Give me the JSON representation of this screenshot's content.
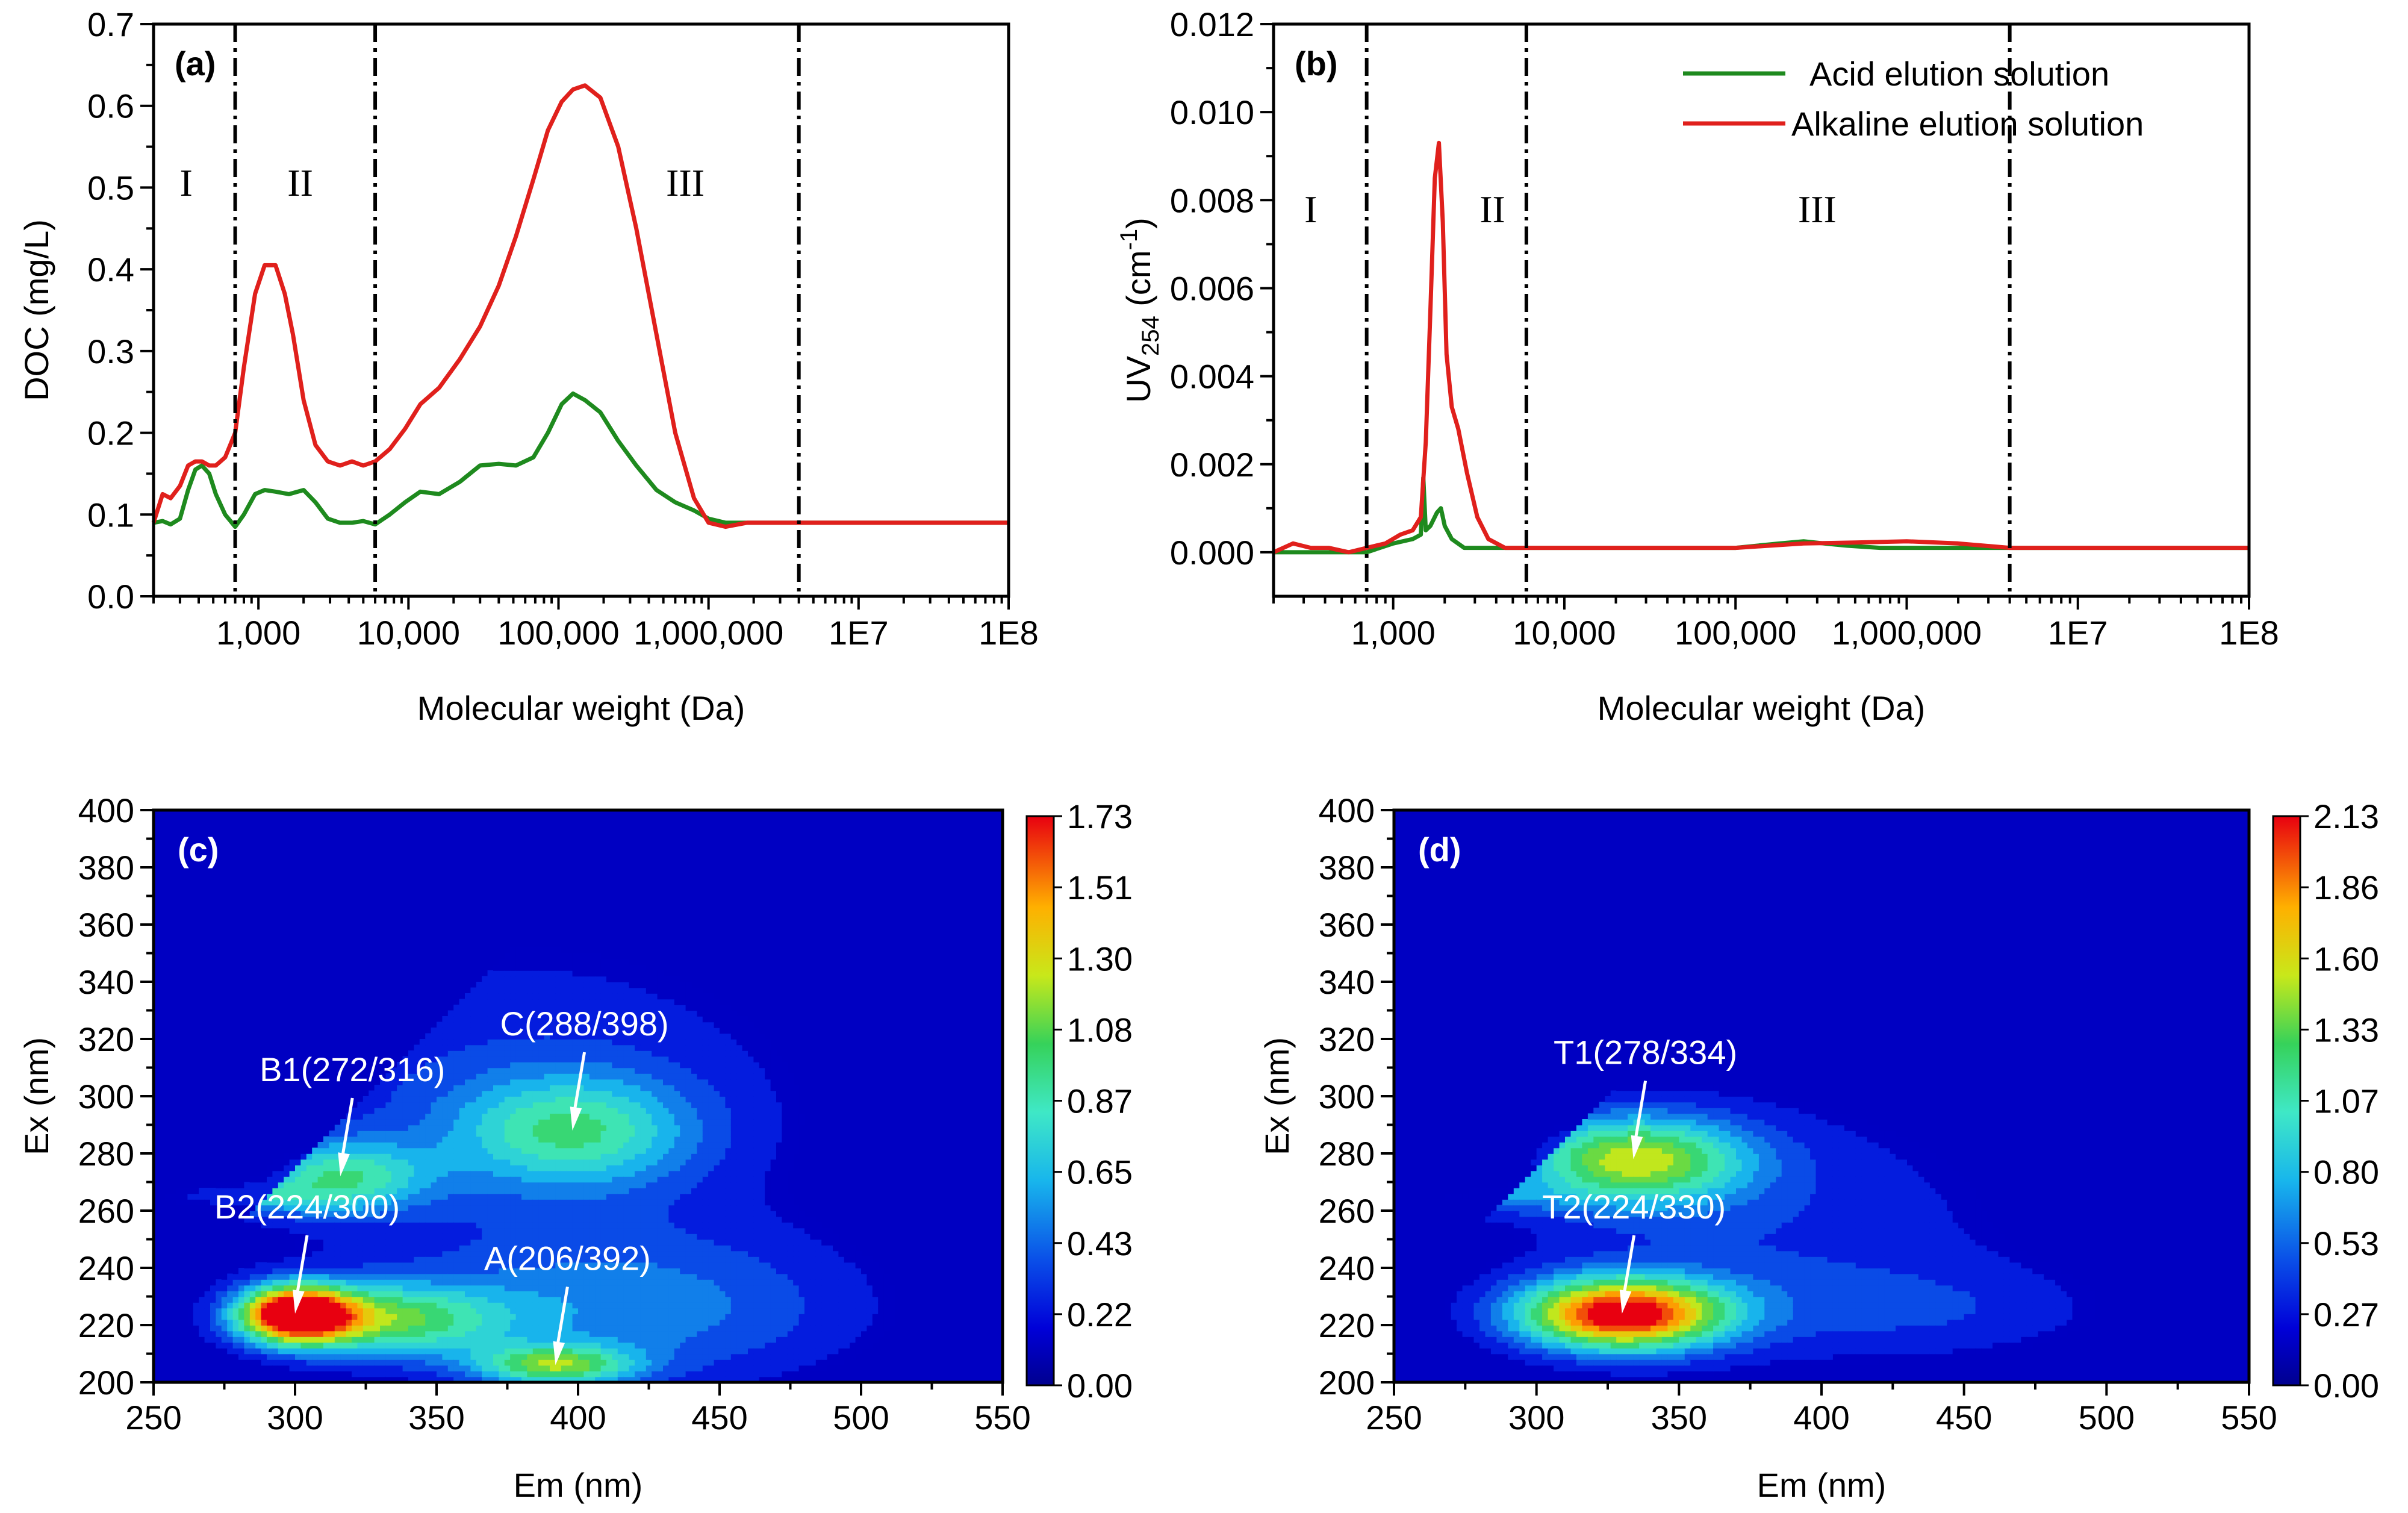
{
  "chart_data": [
    {
      "panel": "(a)",
      "type": "line",
      "xlabel": "Molecular weight (Da)",
      "ylabel": "DOC (mg/L)",
      "xscale": "log",
      "xlim": [
        200,
        100000000
      ],
      "ylim": [
        0.0,
        0.7
      ],
      "xticks": [
        {
          "v": 1000,
          "label": "1,000"
        },
        {
          "v": 10000,
          "label": "10,000"
        },
        {
          "v": 100000,
          "label": "100,000"
        },
        {
          "v": 1000000,
          "label": "1,000,000"
        },
        {
          "v": 10000000,
          "label": "1E7"
        },
        {
          "v": 100000000,
          "label": "1E8"
        }
      ],
      "yticks": [
        {
          "v": 0.0,
          "label": "0.0"
        },
        {
          "v": 0.1,
          "label": "0.1"
        },
        {
          "v": 0.2,
          "label": "0.2"
        },
        {
          "v": 0.3,
          "label": "0.3"
        },
        {
          "v": 0.4,
          "label": "0.4"
        },
        {
          "v": 0.5,
          "label": "0.5"
        },
        {
          "v": 0.6,
          "label": "0.6"
        },
        {
          "v": 0.7,
          "label": "0.7"
        }
      ],
      "dividers": [
        700,
        6000,
        4000000
      ],
      "regions": [
        {
          "label": "I",
          "x": 330,
          "y": 0.49
        },
        {
          "label": "II",
          "x": 1900,
          "y": 0.49
        },
        {
          "label": "III",
          "x": 700000,
          "y": 0.49
        }
      ],
      "series": [
        {
          "name": "Acid elution solution",
          "color": "#1e8a1e",
          "x": [
            200,
            230,
            260,
            300,
            340,
            380,
            420,
            470,
            520,
            600,
            700,
            800,
            950,
            1100,
            1300,
            1600,
            2000,
            2400,
            2900,
            3500,
            4200,
            5000,
            6000,
            7500,
            9500,
            12000,
            16000,
            22000,
            30000,
            40000,
            52000,
            68000,
            85000,
            105000,
            125000,
            150000,
            190000,
            250000,
            330000,
            450000,
            600000,
            800000,
            1000000,
            1300000,
            1800000,
            2500000,
            4000000,
            10000000,
            100000000
          ],
          "y": [
            0.09,
            0.092,
            0.088,
            0.095,
            0.13,
            0.155,
            0.16,
            0.15,
            0.125,
            0.1,
            0.085,
            0.1,
            0.125,
            0.13,
            0.128,
            0.125,
            0.13,
            0.115,
            0.095,
            0.09,
            0.09,
            0.092,
            0.088,
            0.1,
            0.115,
            0.128,
            0.125,
            0.14,
            0.16,
            0.162,
            0.16,
            0.17,
            0.2,
            0.235,
            0.248,
            0.24,
            0.225,
            0.19,
            0.16,
            0.13,
            0.115,
            0.105,
            0.095,
            0.09,
            0.09,
            0.09,
            0.09,
            0.09,
            0.09
          ]
        },
        {
          "name": "Alkaline elution solution",
          "color": "#e0201c",
          "x": [
            200,
            230,
            260,
            300,
            340,
            380,
            420,
            470,
            520,
            600,
            700,
            800,
            950,
            1100,
            1300,
            1500,
            1700,
            2000,
            2400,
            2900,
            3500,
            4200,
            5000,
            6000,
            7500,
            9500,
            12000,
            16000,
            22000,
            30000,
            40000,
            52000,
            68000,
            85000,
            105000,
            125000,
            150000,
            190000,
            250000,
            330000,
            450000,
            600000,
            800000,
            1000000,
            1300000,
            1800000,
            2500000,
            4000000,
            10000000,
            100000000
          ],
          "y": [
            0.09,
            0.125,
            0.12,
            0.135,
            0.16,
            0.165,
            0.165,
            0.16,
            0.16,
            0.17,
            0.2,
            0.28,
            0.37,
            0.405,
            0.405,
            0.37,
            0.32,
            0.24,
            0.185,
            0.165,
            0.16,
            0.165,
            0.16,
            0.165,
            0.18,
            0.205,
            0.235,
            0.255,
            0.29,
            0.33,
            0.38,
            0.44,
            0.51,
            0.57,
            0.605,
            0.62,
            0.625,
            0.61,
            0.55,
            0.45,
            0.32,
            0.2,
            0.12,
            0.09,
            0.085,
            0.09,
            0.09,
            0.09,
            0.09,
            0.09
          ]
        }
      ]
    },
    {
      "panel": "(b)",
      "type": "line",
      "xlabel": "Molecular weight (Da)",
      "ylabel_main": "UV",
      "ylabel_sub": "254",
      "ylabel_unit": " (cm",
      "ylabel_exp": "-1",
      "ylabel_close": ")",
      "xscale": "log",
      "xlim": [
        200,
        100000000
      ],
      "ylim": [
        -0.001,
        0.012
      ],
      "xticks": [
        {
          "v": 1000,
          "label": "1,000"
        },
        {
          "v": 10000,
          "label": "10,000"
        },
        {
          "v": 100000,
          "label": "100,000"
        },
        {
          "v": 1000000,
          "label": "1,000,000"
        },
        {
          "v": 10000000,
          "label": "1E7"
        },
        {
          "v": 100000000,
          "label": "1E8"
        }
      ],
      "yticks": [
        {
          "v": 0.0,
          "label": "0.000"
        },
        {
          "v": 0.002,
          "label": "0.002"
        },
        {
          "v": 0.004,
          "label": "0.004"
        },
        {
          "v": 0.006,
          "label": "0.006"
        },
        {
          "v": 0.008,
          "label": "0.008"
        },
        {
          "v": 0.01,
          "label": "0.010"
        },
        {
          "v": 0.012,
          "label": "0.012"
        }
      ],
      "dividers": [
        700,
        6000,
        4000000
      ],
      "regions": [
        {
          "label": "I",
          "x": 330,
          "y": 0.0075
        },
        {
          "label": "II",
          "x": 3800,
          "y": 0.0075
        },
        {
          "label": "III",
          "x": 300000,
          "y": 0.0075
        }
      ],
      "legend_position": "top-right",
      "series": [
        {
          "name": "Acid elution solution",
          "color": "#1e8a1e",
          "x": [
            200,
            400,
            700,
            1000,
            1300,
            1450,
            1500,
            1550,
            1650,
            1800,
            1900,
            2000,
            2200,
            2600,
            3200,
            4000,
            6000,
            10000,
            30000,
            100000,
            180000,
            250000,
            330000,
            450000,
            700000,
            1000000,
            2000000,
            5000000,
            100000000
          ],
          "y": [
            0.0,
            0.0,
            0.0,
            0.0002,
            0.0003,
            0.0004,
            0.0017,
            0.0005,
            0.0006,
            0.0009,
            0.001,
            0.0006,
            0.0003,
            0.0001,
            0.0001,
            0.0001,
            0.0001,
            0.0001,
            0.0001,
            0.0001,
            0.0002,
            0.00025,
            0.0002,
            0.00015,
            0.0001,
            0.0001,
            0.0001,
            0.0001,
            0.0001
          ]
        },
        {
          "name": "Alkaline elution solution",
          "color": "#e0201c",
          "x": [
            200,
            260,
            330,
            420,
            550,
            700,
            900,
            1100,
            1300,
            1450,
            1550,
            1650,
            1750,
            1850,
            1950,
            2050,
            2200,
            2400,
            2700,
            3100,
            3600,
            4500,
            6000,
            10000,
            30000,
            100000,
            250000,
            500000,
            1000000,
            2000000,
            4000000,
            10000000,
            100000000
          ],
          "y": [
            0.0,
            0.0002,
            0.0001,
            0.0001,
            0.0,
            0.0001,
            0.0002,
            0.0004,
            0.0005,
            0.0008,
            0.0025,
            0.0055,
            0.0085,
            0.0093,
            0.0075,
            0.0045,
            0.0033,
            0.0028,
            0.0018,
            0.0008,
            0.0003,
            0.0001,
            0.0001,
            0.0001,
            0.0001,
            0.0001,
            0.0002,
            0.00022,
            0.00025,
            0.0002,
            0.0001,
            0.0001,
            0.0001
          ]
        }
      ]
    },
    {
      "panel": "(c)",
      "type": "heatmap",
      "xlabel": "Em (nm)",
      "ylabel": "Ex (nm)",
      "xlim": [
        250,
        550
      ],
      "ylim": [
        200,
        400
      ],
      "xticks": [
        250,
        300,
        350,
        400,
        450,
        500,
        550
      ],
      "yticks": [
        200,
        220,
        240,
        260,
        280,
        300,
        320,
        340,
        360,
        380,
        400
      ],
      "colorbar_max": 1.73,
      "colorbar_ticks": [
        "1.73",
        "1.51",
        "1.30",
        "1.08",
        "0.87",
        "0.65",
        "0.43",
        "0.22",
        "0.00"
      ],
      "peaks": [
        {
          "name": "B1(272/316)",
          "em": 316,
          "ex": 272,
          "amp": 0.75,
          "sem": 22,
          "sex": 9
        },
        {
          "name": "C(288/398)",
          "em": 398,
          "ex": 288,
          "amp": 0.7,
          "sem": 30,
          "sex": 14
        },
        {
          "name": "B2(224/300)",
          "em": 300,
          "ex": 224,
          "amp": 1.73,
          "sem": 14,
          "sex": 7
        },
        {
          "name": "A(206/392)",
          "em": 392,
          "ex": 206,
          "amp": 0.9,
          "sem": 20,
          "sex": 5
        }
      ],
      "shoulders": [
        {
          "em": 330,
          "ex": 222,
          "amp": 0.9,
          "sem": 30,
          "sex": 9
        },
        {
          "em": 420,
          "ex": 225,
          "amp": 0.45,
          "sem": 60,
          "sex": 20
        },
        {
          "em": 380,
          "ex": 300,
          "amp": 0.3,
          "sem": 80,
          "sex": 45
        },
        {
          "em": 270,
          "ex": 265,
          "amp": 0.55,
          "sem": 25,
          "sex": 4
        }
      ]
    },
    {
      "panel": "(d)",
      "type": "heatmap",
      "xlabel": "Em (nm)",
      "ylabel": "Ex (nm)",
      "xlim": [
        250,
        550
      ],
      "ylim": [
        200,
        400
      ],
      "xticks": [
        250,
        300,
        350,
        400,
        450,
        500,
        550
      ],
      "yticks": [
        200,
        220,
        240,
        260,
        280,
        300,
        320,
        340,
        360,
        380,
        400
      ],
      "colorbar_max": 2.13,
      "colorbar_ticks": [
        "2.13",
        "1.86",
        "1.60",
        "1.33",
        "1.07",
        "0.80",
        "0.53",
        "0.27",
        "0.00"
      ],
      "peaks": [
        {
          "name": "T1(278/334)",
          "em": 334,
          "ex": 278,
          "amp": 1.35,
          "sem": 28,
          "sex": 11
        },
        {
          "name": "T2(224/330)",
          "em": 330,
          "ex": 224,
          "amp": 2.13,
          "sem": 26,
          "sex": 9
        }
      ],
      "shoulders": [
        {
          "em": 380,
          "ex": 255,
          "amp": 0.35,
          "sem": 70,
          "sex": 35
        },
        {
          "em": 270,
          "ex": 265,
          "amp": 0.5,
          "sem": 25,
          "sex": 4
        },
        {
          "em": 440,
          "ex": 225,
          "amp": 0.25,
          "sem": 50,
          "sex": 12
        }
      ]
    }
  ]
}
